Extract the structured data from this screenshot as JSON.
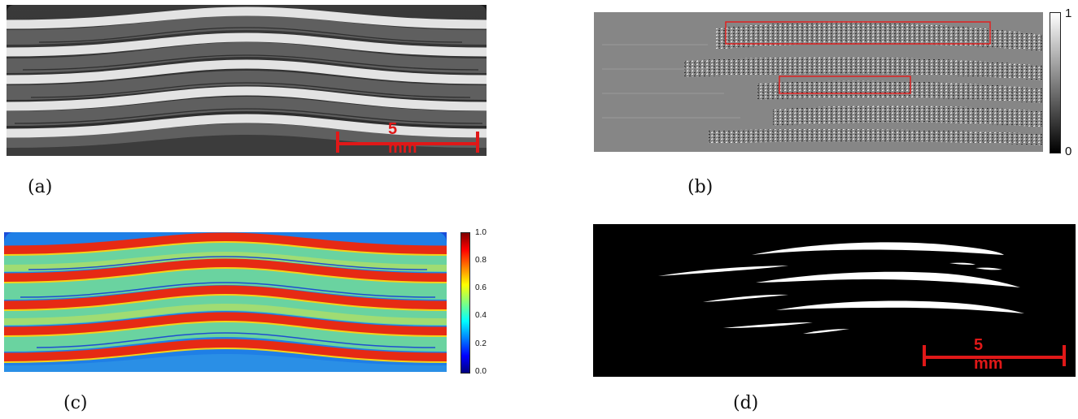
{
  "panels": [
    {
      "id": "a",
      "caption": "(a)",
      "scalebar_label": "5 mm",
      "colors": {
        "background": "#111111",
        "ply": "#e6e6e6",
        "matrix": "#6b6b6b",
        "scalebar": "#e01818"
      }
    },
    {
      "id": "b",
      "caption": "(b)",
      "colorbar": {
        "max_label": "1",
        "min_label": "0",
        "colormap": "gray"
      },
      "highlight_color": "#e02020"
    },
    {
      "id": "c",
      "caption": "(c)",
      "colorbar": {
        "ticks": [
          "1.0",
          "0.8",
          "0.6",
          "0.4",
          "0.2",
          "0.0"
        ],
        "colormap": "jet"
      }
    },
    {
      "id": "d",
      "caption": "(d)",
      "scalebar_label": "5 mm",
      "colors": {
        "background": "#000000",
        "crack": "#ffffff",
        "scalebar": "#e01818"
      }
    }
  ]
}
